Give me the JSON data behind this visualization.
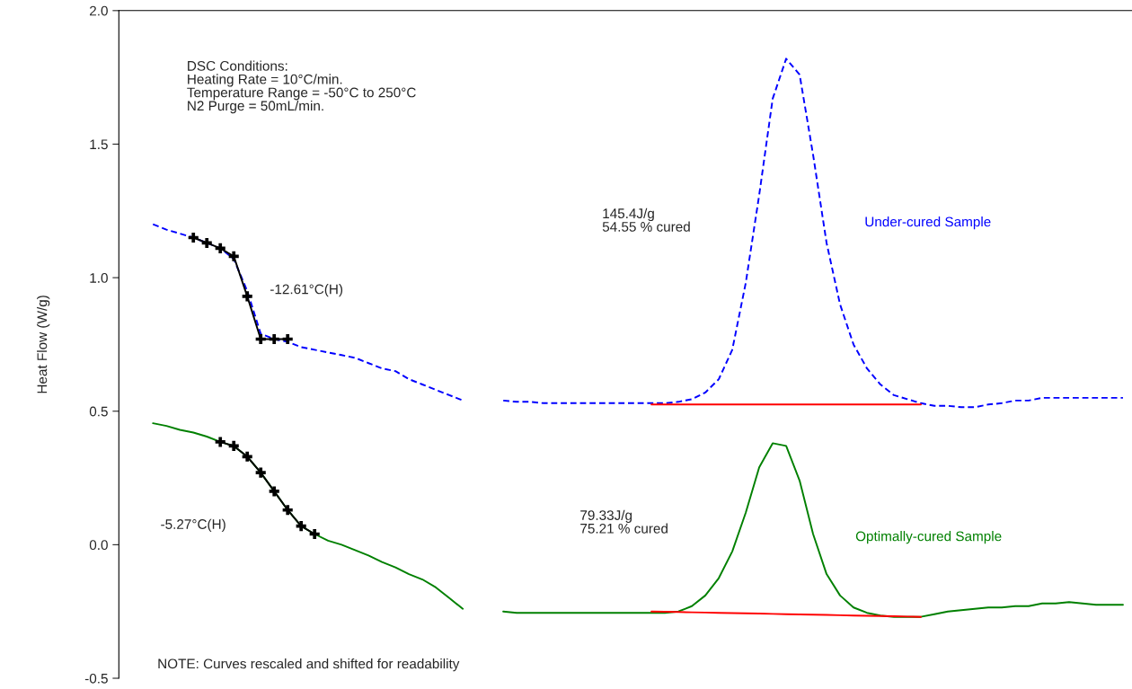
{
  "chart_data": {
    "type": "line",
    "ylabel": "Heat Flow (W/g)",
    "categories": [
      null,
      null,
      null,
      null,
      null,
      null,
      null,
      null,
      null,
      null,
      null,
      null,
      null,
      null,
      null,
      null,
      null,
      null,
      null,
      null,
      null,
      null,
      null,
      null,
      null,
      null,
      null,
      null,
      null,
      null,
      null,
      null,
      null,
      null,
      null,
      null,
      null,
      null,
      null,
      null,
      null,
      null,
      null,
      null,
      null,
      null,
      null,
      null,
      null,
      null,
      null,
      null,
      null,
      null,
      null,
      null,
      null,
      null,
      null,
      null,
      null,
      null,
      null,
      null,
      null,
      null,
      null,
      null,
      null,
      null,
      null,
      null,
      null
    ],
    "ylim": [
      -0.5,
      2.0
    ],
    "yticks": [
      {
        "value": -0.5,
        "label": "-0.5"
      },
      {
        "value": 0,
        "label": "0.0"
      },
      {
        "value": 0.5,
        "label": "0.5"
      },
      {
        "value": 1.0,
        "label": "1.0"
      },
      {
        "value": 1.5,
        "label": "1.5"
      },
      {
        "value": 2.0,
        "label": "2.0"
      }
    ],
    "grid": false,
    "legend": false,
    "tick_labels": "y",
    "series": [
      {
        "color": "#0000ff",
        "line_style": "dashed",
        "marker": "none",
        "values": [
          1.2,
          1.18,
          1.165,
          1.15,
          1.13,
          1.11,
          1.07,
          0.95,
          0.79,
          0.77,
          0.76,
          0.74,
          0.73,
          0.72,
          0.71,
          0.7,
          0.68,
          0.66,
          0.65,
          0.62,
          0.6,
          0.58,
          0.56,
          0.54,
          null,
          null,
          null,
          null,
          null,
          null,
          null,
          null,
          null,
          null,
          null,
          null,
          null,
          null,
          null,
          null,
          null,
          null,
          null,
          null,
          null,
          null,
          null,
          null,
          null,
          null,
          null,
          null,
          null,
          null,
          null,
          null,
          null,
          null,
          null,
          null,
          null,
          null,
          null,
          null,
          null,
          null,
          null,
          null,
          null,
          null,
          null,
          null,
          null
        ]
      },
      {
        "name": "Under-cured Sample",
        "color": "#0000ff",
        "line_style": "dashed",
        "marker": "none",
        "values": [
          null,
          null,
          null,
          null,
          null,
          null,
          null,
          null,
          null,
          null,
          null,
          null,
          null,
          null,
          null,
          null,
          null,
          null,
          null,
          null,
          null,
          null,
          null,
          null,
          null,
          null,
          0.54,
          0.535,
          0.535,
          0.53,
          0.53,
          0.53,
          0.53,
          0.53,
          0.53,
          0.53,
          0.53,
          0.53,
          0.53,
          0.535,
          0.545,
          0.57,
          0.62,
          0.73,
          0.98,
          1.31,
          1.67,
          1.82,
          1.76,
          1.46,
          1.13,
          0.9,
          0.75,
          0.66,
          0.6,
          0.56,
          0.545,
          0.53,
          0.52,
          0.52,
          0.515,
          0.515,
          0.525,
          0.53,
          0.54,
          0.54,
          0.55,
          0.55,
          0.55,
          0.55,
          0.55,
          0.55,
          0.55
        ]
      },
      {
        "color": "#008000",
        "line_style": "solid",
        "marker": "none",
        "values": [
          0.455,
          0.445,
          0.43,
          0.42,
          0.405,
          0.385,
          0.37,
          0.33,
          0.27,
          0.2,
          0.13,
          0.07,
          0.04,
          0.015,
          0.0,
          -0.02,
          -0.04,
          -0.065,
          -0.085,
          -0.11,
          -0.13,
          -0.16,
          -0.2,
          -0.24,
          null,
          null,
          null,
          null,
          null,
          null,
          null,
          null,
          null,
          null,
          null,
          null,
          null,
          null,
          null,
          null,
          null,
          null,
          null,
          null,
          null,
          null,
          null,
          null,
          null,
          null,
          null,
          null,
          null,
          null,
          null,
          null,
          null,
          null,
          null,
          null,
          null,
          null,
          null,
          null,
          null,
          null,
          null,
          null,
          null,
          null,
          null,
          null,
          null
        ]
      },
      {
        "name": "Optimally-cured Sample",
        "color": "#008000",
        "line_style": "solid",
        "marker": "none",
        "values": [
          null,
          null,
          null,
          null,
          null,
          null,
          null,
          null,
          null,
          null,
          null,
          null,
          null,
          null,
          null,
          null,
          null,
          null,
          null,
          null,
          null,
          null,
          null,
          null,
          null,
          null,
          -0.25,
          -0.255,
          -0.255,
          -0.255,
          -0.255,
          -0.255,
          -0.255,
          -0.255,
          -0.255,
          -0.255,
          -0.255,
          -0.255,
          -0.255,
          -0.25,
          -0.23,
          -0.19,
          -0.125,
          -0.025,
          0.12,
          0.29,
          0.38,
          0.37,
          0.24,
          0.04,
          -0.11,
          -0.19,
          -0.235,
          -0.255,
          -0.265,
          -0.27,
          -0.27,
          -0.27,
          -0.26,
          -0.25,
          -0.245,
          -0.24,
          -0.235,
          -0.235,
          -0.23,
          -0.23,
          -0.22,
          -0.22,
          -0.215,
          -0.22,
          -0.225,
          -0.225,
          -0.225
        ]
      },
      {
        "color": "#000000",
        "line_style": "solid",
        "marker": "cross",
        "values": [
          null,
          null,
          null,
          1.15,
          1.13,
          1.11,
          1.08,
          0.93,
          0.77,
          0.77,
          0.77,
          null,
          null,
          null,
          null,
          null,
          null,
          null,
          null,
          null,
          null,
          null,
          null,
          null,
          null,
          null,
          null,
          null,
          null,
          null,
          null,
          null,
          null,
          null,
          null,
          null,
          null,
          null,
          null,
          null,
          null,
          null,
          null,
          null,
          null,
          null,
          null,
          null,
          null,
          null,
          null,
          null,
          null,
          null,
          null,
          null,
          null,
          null,
          null,
          null,
          null,
          null,
          null,
          null,
          null,
          null,
          null,
          null,
          null,
          null,
          null,
          null,
          null
        ]
      },
      {
        "color": "#000000",
        "line_style": "solid",
        "marker": "cross",
        "values": [
          null,
          null,
          null,
          null,
          null,
          0.385,
          0.37,
          0.33,
          0.27,
          0.2,
          0.13,
          0.07,
          0.04,
          null,
          null,
          null,
          null,
          null,
          null,
          null,
          null,
          null,
          null,
          null,
          null,
          null,
          null,
          null,
          null,
          null,
          null,
          null,
          null,
          null,
          null,
          null,
          null,
          null,
          null,
          null,
          null,
          null,
          null,
          null,
          null,
          null,
          null,
          null,
          null,
          null,
          null,
          null,
          null,
          null,
          null,
          null,
          null,
          null,
          null,
          null,
          null,
          null,
          null,
          null,
          null,
          null,
          null,
          null,
          null,
          null,
          null,
          null,
          null
        ]
      },
      {
        "color": "#ff0000",
        "line_style": "solid",
        "marker": "none",
        "values": [
          null,
          null,
          null,
          null,
          null,
          null,
          null,
          null,
          null,
          null,
          null,
          null,
          null,
          null,
          null,
          null,
          null,
          null,
          null,
          null,
          null,
          null,
          null,
          null,
          null,
          null,
          null,
          null,
          null,
          null,
          null,
          null,
          null,
          null,
          null,
          null,
          null,
          0.525,
          0.525,
          0.525,
          0.525,
          0.525,
          0.525,
          0.525,
          0.525,
          0.525,
          0.525,
          0.525,
          0.525,
          0.525,
          0.525,
          0.525,
          0.525,
          0.525,
          0.525,
          0.525,
          0.525,
          0.525,
          null,
          null,
          null,
          null,
          null,
          null,
          null,
          null,
          null,
          null,
          null,
          null,
          null,
          null,
          null
        ]
      },
      {
        "color": "#ff0000",
        "line_style": "solid",
        "marker": "none",
        "values": [
          null,
          null,
          null,
          null,
          null,
          null,
          null,
          null,
          null,
          null,
          null,
          null,
          null,
          null,
          null,
          null,
          null,
          null,
          null,
          null,
          null,
          null,
          null,
          null,
          null,
          null,
          null,
          null,
          null,
          null,
          null,
          null,
          null,
          null,
          null,
          null,
          null,
          -0.25,
          -0.251,
          -0.252,
          -0.253,
          -0.254,
          -0.255,
          -0.256,
          -0.257,
          -0.258,
          -0.259,
          -0.26,
          -0.261,
          -0.262,
          -0.263,
          -0.264,
          -0.265,
          -0.266,
          -0.267,
          -0.268,
          -0.269,
          -0.27,
          null,
          null,
          null,
          null,
          null,
          null,
          null,
          null,
          null,
          null,
          null,
          null,
          null,
          null,
          null
        ]
      }
    ],
    "annotations": [
      "DSC Conditions:\nHeating Rate = 10°C/min.\nTemperature Range = -50°C to 250°C\nN2 Purge = 50mL/min.",
      "145.4J/g\n54.55 % cured",
      "-12.61°C(H)",
      "-5.27°C(H)",
      "79.33J/g\n75.21 % cured",
      "NOTE: Curves rescaled and shifted for readability"
    ]
  }
}
